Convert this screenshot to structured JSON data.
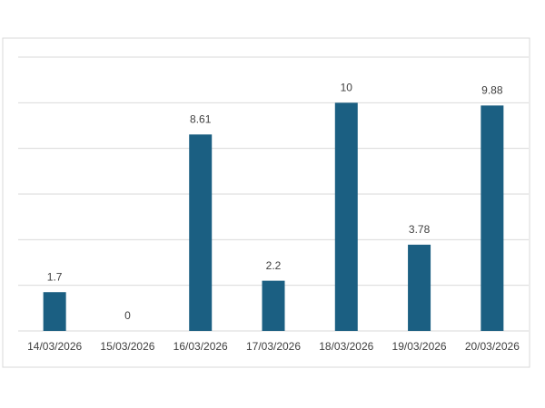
{
  "chart_data": {
    "type": "bar",
    "categories": [
      "14/03/2026",
      "15/03/2026",
      "16/03/2026",
      "17/03/2026",
      "18/03/2026",
      "19/03/2026",
      "20/03/2026"
    ],
    "values": [
      1.7,
      0,
      8.61,
      2.2,
      10,
      3.78,
      9.88
    ],
    "color": "#1b5f82",
    "ylim": [
      0,
      12
    ],
    "yticks": [
      0,
      2,
      4,
      6,
      8,
      10,
      12
    ],
    "grid": true
  }
}
